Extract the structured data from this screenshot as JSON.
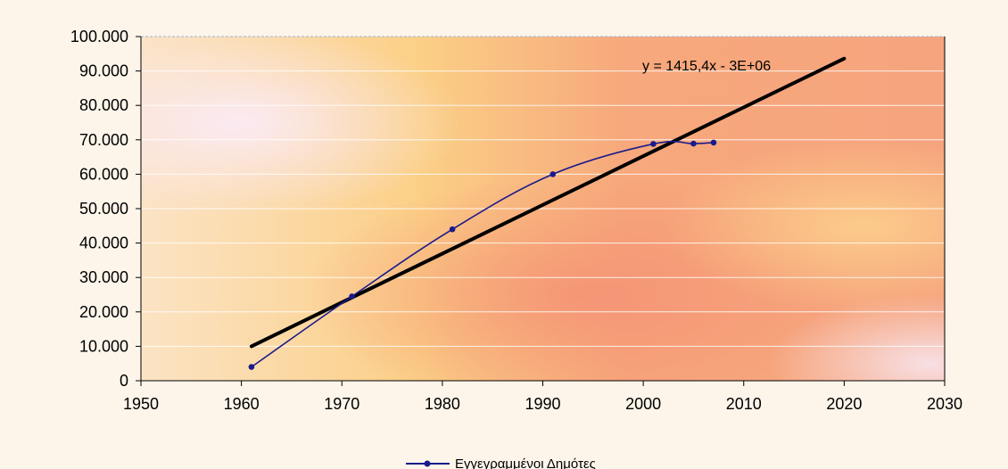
{
  "chart_data": {
    "type": "line",
    "x": [
      1961,
      1971,
      1981,
      1991,
      2001,
      2005,
      2007
    ],
    "series": [
      {
        "name": "Εγγεγραμμένοι Δημότες",
        "color": "#1a1a8c",
        "values": [
          4000,
          24500,
          44000,
          60000,
          68800,
          68900,
          69200
        ]
      }
    ],
    "trendline": {
      "label": "y = 1415,4x - 3E+06",
      "x": [
        1961,
        2020
      ],
      "y": [
        10000,
        93600
      ],
      "color": "#000000"
    },
    "xlim": [
      1950,
      2030
    ],
    "ylim": [
      0,
      100000
    ],
    "x_ticks": [
      "1950",
      "1960",
      "1970",
      "1980",
      "1990",
      "2000",
      "2010",
      "2020",
      "2030"
    ],
    "x_tick_values": [
      1950,
      1960,
      1970,
      1980,
      1990,
      2000,
      2010,
      2020,
      2030
    ],
    "y_ticks": [
      "0",
      "10.000",
      "20.000",
      "30.000",
      "40.000",
      "50.000",
      "60.000",
      "70.000",
      "80.000",
      "90.000",
      "100.000"
    ],
    "y_tick_values": [
      0,
      10000,
      20000,
      30000,
      40000,
      50000,
      60000,
      70000,
      80000,
      90000,
      100000
    ],
    "grid": true,
    "legend": "bottom"
  }
}
